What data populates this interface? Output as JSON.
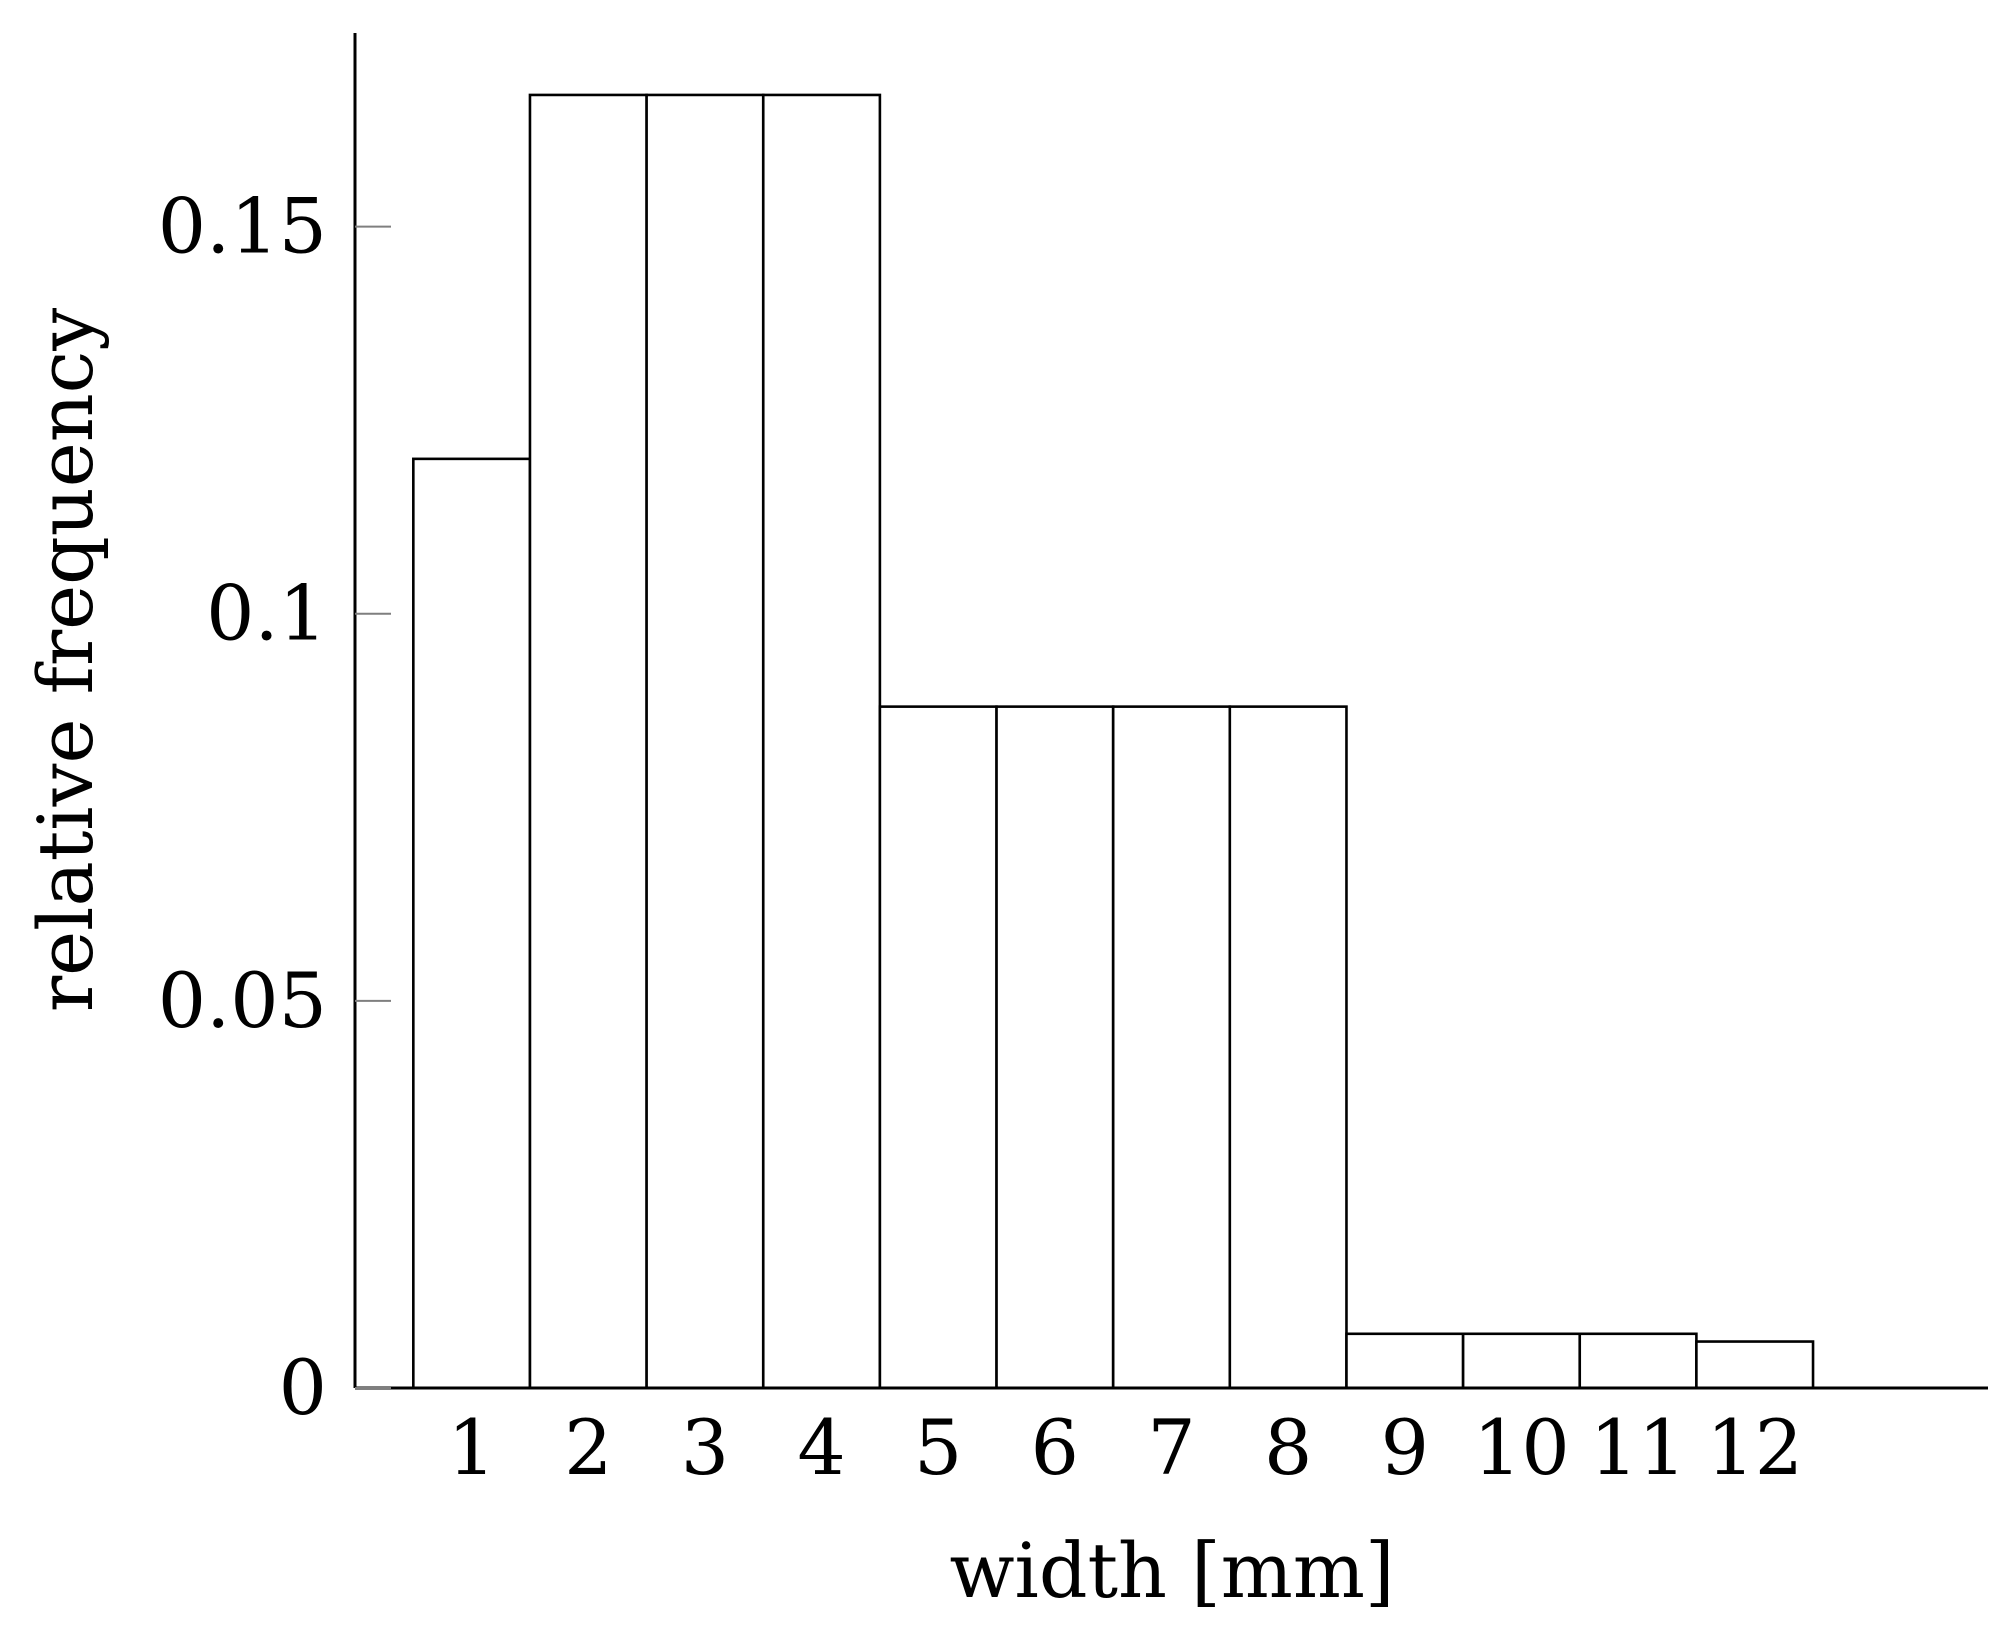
{
  "chart_data": {
    "type": "bar",
    "title": "",
    "xlabel": "width [mm]",
    "ylabel": "relative frequency",
    "categories": [
      "1",
      "2",
      "3",
      "4",
      "5",
      "6",
      "7",
      "8",
      "9",
      "10",
      "11",
      "12"
    ],
    "values": [
      0.12,
      0.167,
      0.167,
      0.167,
      0.088,
      0.088,
      0.088,
      0.088,
      0.007,
      0.007,
      0.007,
      0.006
    ],
    "xlim": [
      0,
      14
    ],
    "ylim": [
      0,
      0.175
    ],
    "yticks": [
      {
        "value": 0,
        "label": "0"
      },
      {
        "value": 0.05,
        "label": "0.05"
      },
      {
        "value": 0.1,
        "label": "0.1"
      },
      {
        "value": 0.15,
        "label": "0.15"
      }
    ],
    "grid": false,
    "legend": "none",
    "bar_fill": "#ffffff",
    "bar_stroke": "#000000"
  }
}
